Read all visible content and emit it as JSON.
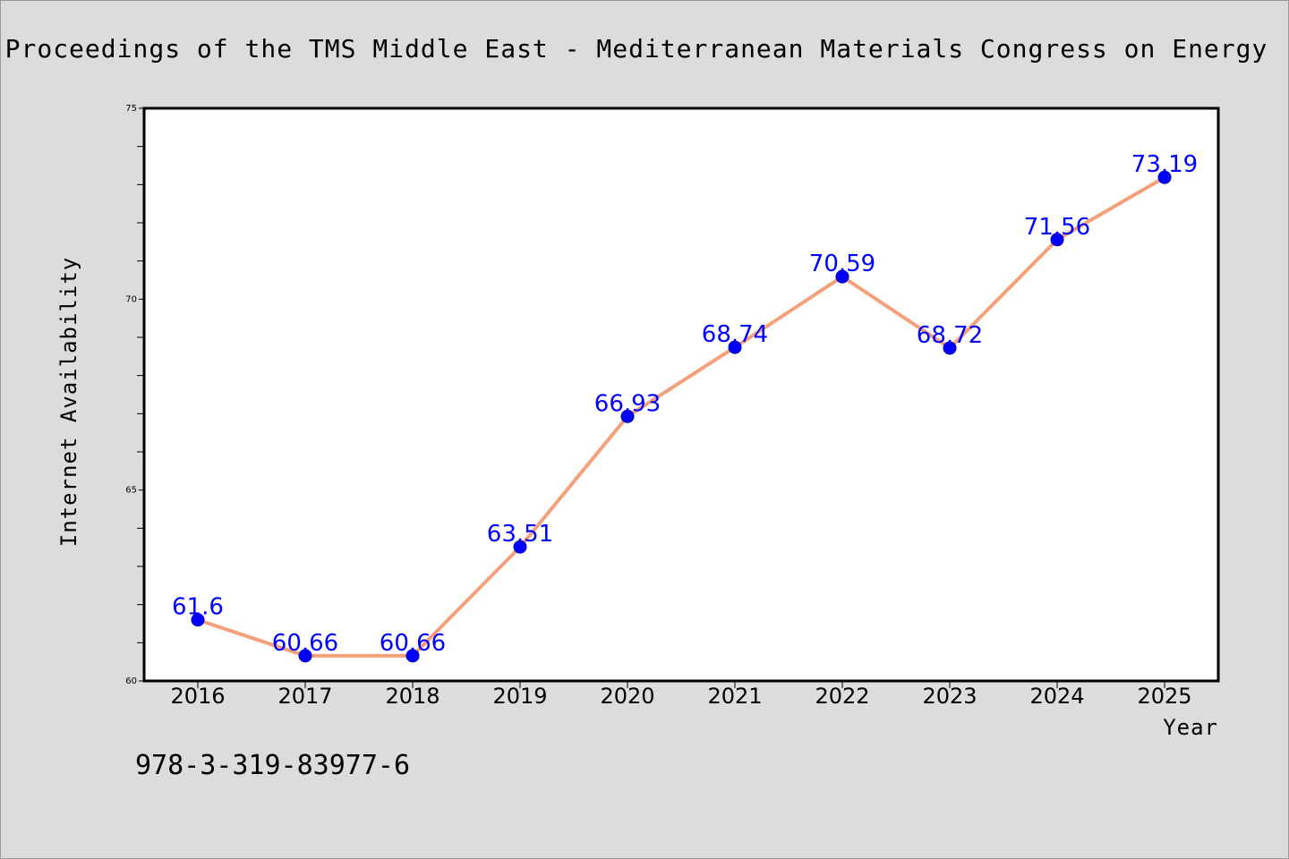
{
  "header": {
    "title": "Proceedings of the TMS Middle East - Mediterranean Materials Congress on Energy"
  },
  "footer": {
    "isbn": "978-3-319-83977-6"
  },
  "colors": {
    "background": "#dcdcdc",
    "plot_background": "#ffffff",
    "line": "#f4a07a",
    "marker": "#0000ff",
    "data_label": "#0000ff"
  },
  "chart_data": {
    "type": "line",
    "title": "Proceedings of the TMS Middle East - Mediterranean Materials Congress on Energy",
    "xlabel": "Year",
    "ylabel": "Internet Availability",
    "categories": [
      "2016",
      "2017",
      "2018",
      "2019",
      "2020",
      "2021",
      "2022",
      "2023",
      "2024",
      "2025"
    ],
    "series": [
      {
        "values": [
          61.6,
          60.66,
          60.66,
          63.51,
          66.93,
          68.74,
          70.59,
          68.72,
          71.56,
          73.19
        ],
        "labels": [
          "61.6",
          "60.66",
          "60.66",
          "63.51",
          "66.93",
          "68.74",
          "70.59",
          "68.72",
          "71.56",
          "73.19"
        ]
      }
    ],
    "ylim": [
      60,
      75
    ],
    "yticks": [
      "60",
      "65",
      "70",
      "75"
    ],
    "grid": false,
    "legend": "none",
    "marker": "circle",
    "data_labels": true
  }
}
